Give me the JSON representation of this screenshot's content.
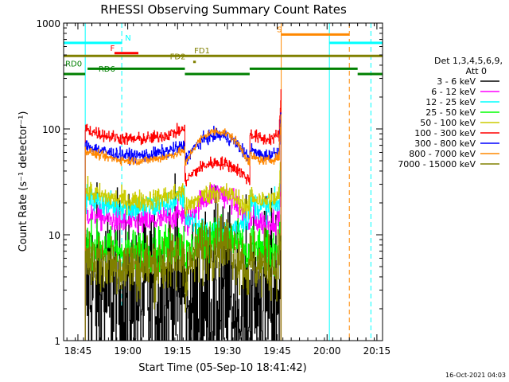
{
  "chart_data": {
    "type": "line",
    "title": "RHESSI Observing Summary Count Rates",
    "xlabel": "Start Time (05-Sep-10 18:41:42)",
    "ylabel": "Count Rate (s⁻¹ detector⁻¹)",
    "yscale": "log",
    "ylim": [
      1,
      1000
    ],
    "xlim_minutes": [
      -1.0,
      95.0
    ],
    "x_ticks": [
      {
        "label": "18:45",
        "minute": 3.3
      },
      {
        "label": "19:00",
        "minute": 18.3
      },
      {
        "label": "19:15",
        "minute": 33.3
      },
      {
        "label": "19:30",
        "minute": 48.3
      },
      {
        "label": "19:45",
        "minute": 63.3
      },
      {
        "label": "20:00",
        "minute": 78.3
      },
      {
        "label": "20:15",
        "minute": 93.3
      }
    ],
    "y_ticks": [
      {
        "label": "1",
        "value": 1
      },
      {
        "label": "10",
        "value": 10
      },
      {
        "label": "100",
        "value": 100
      },
      {
        "label": "1000",
        "value": 1000
      }
    ],
    "legend_title": "Det 1,3,4,5,6,9,",
    "legend_subtitle": "Att 0",
    "legend_position": "right",
    "series": [
      {
        "name": "3 - 6 keV",
        "color": "#000000",
        "base": 2.5,
        "bump": 0.9,
        "noise": 0.45,
        "gap_drop": 0.6
      },
      {
        "name": "6 - 12 keV",
        "color": "#ff00ff",
        "base": 13.0,
        "bump": 1.9,
        "noise": 0.06,
        "gap_drop": 0.85
      },
      {
        "name": "12 - 25 keV",
        "color": "#00ffff",
        "base": 18.0,
        "bump": 0.55,
        "noise": 0.06,
        "gap_drop": 0.85
      },
      {
        "name": "25 - 50 keV",
        "color": "#00ff00",
        "base": 7.0,
        "bump": 1.4,
        "noise": 0.1,
        "gap_drop": 0.85
      },
      {
        "name": "50 - 100 keV",
        "color": "#cccc00",
        "base": 21.0,
        "bump": 1.2,
        "noise": 0.05,
        "gap_drop": 0.8
      },
      {
        "name": "100 - 300 keV",
        "color": "#ff0000",
        "base": 80.0,
        "bump": 0.6,
        "noise": 0.03,
        "gap_drop": 0.4
      },
      {
        "name": "300 - 800 keV",
        "color": "#0000ff",
        "base": 56.0,
        "bump": 1.55,
        "noise": 0.03,
        "gap_drop": 0.9
      },
      {
        "name": "800 - 7000 keV",
        "color": "#ff8800",
        "base": 50.0,
        "bump": 1.9,
        "noise": 0.02,
        "gap_drop": 0.9
      },
      {
        "name": "7000 - 15000 keV",
        "color": "#808000",
        "base": 5.0,
        "bump": 1.7,
        "noise": 0.15,
        "gap_drop": 0.8
      }
    ],
    "vertical_lines": [
      {
        "minute": 5.5,
        "color": "#00ffff",
        "style": "solid"
      },
      {
        "minute": 16.5,
        "color": "#00ffff",
        "style": "dashed"
      },
      {
        "minute": 79.0,
        "color": "#00ffff",
        "style": "solid"
      },
      {
        "minute": 91.5,
        "color": "#00ffff",
        "style": "dashed"
      },
      {
        "minute": 64.5,
        "color": "#ff8800",
        "style": "solid"
      },
      {
        "minute": 85.0,
        "color": "#ff8800",
        "style": "dashed"
      }
    ],
    "flag_bars": [
      {
        "label": "N",
        "color": "#00ffff",
        "value": 650,
        "start": -1.0,
        "end": 16.5,
        "label_minute": 17.5
      },
      {
        "label": "",
        "color": "#00ffff",
        "value": 650,
        "start": 79.0,
        "end": 95.0,
        "label_minute": null
      },
      {
        "label": "F",
        "color": "#ff0000",
        "value": 520,
        "start": 14.3,
        "end": 21.5,
        "label_minute": 13.0
      },
      {
        "label": "S",
        "color": "#ff8800",
        "value": 780,
        "start": 64.5,
        "end": 85.0,
        "label_minute": 63.2
      },
      {
        "label": "FD1",
        "color": "#808000",
        "value": 490,
        "start": -1.0,
        "end": 95.0,
        "label_minute": 38.3
      },
      {
        "label": "FD2",
        "color": "#808000",
        "value": 430,
        "start": 38.0,
        "end": 38.8,
        "label_minute": 31.0
      },
      {
        "label": "RD0",
        "color": "#008000",
        "value": 370,
        "start": 6.2,
        "end": 35.5,
        "label_minute": -0.5
      },
      {
        "label": "",
        "color": "#008000",
        "value": 370,
        "start": 55.0,
        "end": 87.5,
        "label_minute": null
      },
      {
        "label": "RD6",
        "color": "#008000",
        "value": 330,
        "start": -1.0,
        "end": 5.5,
        "label_minute": 9.5
      },
      {
        "label": "",
        "color": "#008000",
        "value": 330,
        "start": 35.5,
        "end": 55.0,
        "label_minute": null
      },
      {
        "label": "",
        "color": "#008000",
        "value": 330,
        "start": 87.5,
        "end": 95.0,
        "label_minute": null
      }
    ],
    "data_start_minute": 5.5,
    "data_end_minute": 64.5,
    "segments": [
      [
        5.5,
        35.5
      ],
      [
        35.5,
        55.0
      ],
      [
        55.0,
        64.5
      ]
    ],
    "grid": false
  },
  "timestamp": "16-Oct-2021 04:03"
}
